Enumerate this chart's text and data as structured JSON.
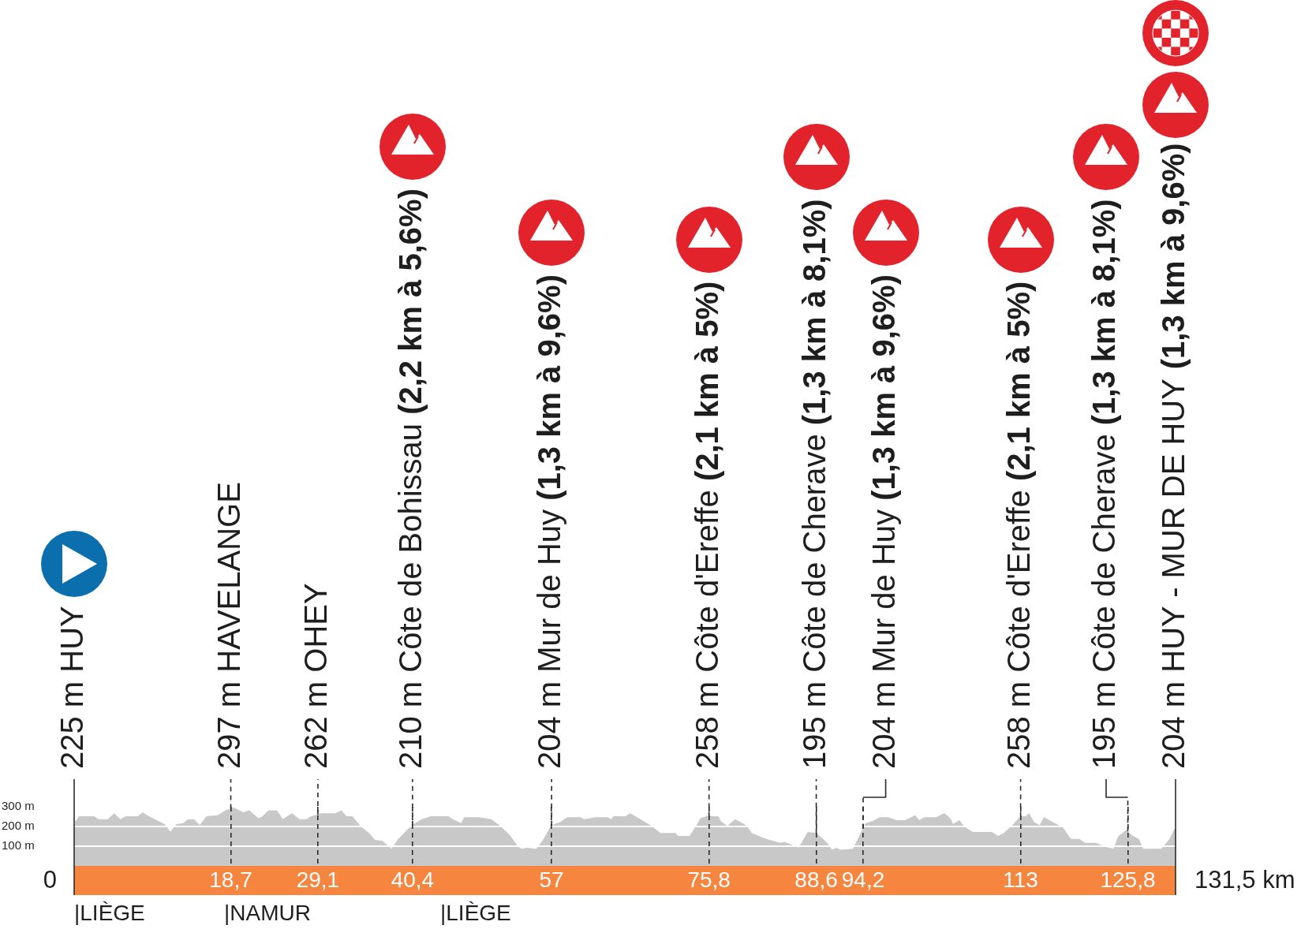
{
  "chart_data": {
    "type": "area",
    "color": "#c8c8c8",
    "x": [
      0,
      0.6,
      2.4,
      2.9,
      4.0,
      4.8,
      5.5,
      6.2,
      7.6,
      8.2,
      8.7,
      10.1,
      10.8,
      11.5,
      12.2,
      13.0,
      13.6,
      14.3,
      15.0,
      15.8,
      17.1,
      18.1,
      19.0,
      20.2,
      20.9,
      22.0,
      22.5,
      23.2,
      24.2,
      24.9,
      26.0,
      26.9,
      27.7,
      28.3,
      29.5,
      31.2,
      31.9,
      32.5,
      33.2,
      34.2,
      35.2,
      35.9,
      36.8,
      37.9,
      38.7,
      40.3,
      41.5,
      42.6,
      44.7,
      45.2,
      46.2,
      46.6,
      48.3,
      49.8,
      50.9,
      52.0,
      53.0,
      53.5,
      54.0,
      55.2,
      56.0,
      57.0,
      58.0,
      58.9,
      60.4,
      60.9,
      62.2,
      63.7,
      64.1,
      64.4,
      65.8,
      66.4,
      67.4,
      68.8,
      70.0,
      71.8,
      72.1,
      73.5,
      74.8,
      75.5,
      76.9,
      77.2,
      78.0,
      78.9,
      80.2,
      80.9,
      82.6,
      84.3,
      84.8,
      86.5,
      87.6,
      88.6,
      89.8,
      90.5,
      91.0,
      91.5,
      93.0,
      93.7,
      94.5,
      95.3,
      96.2,
      97.2,
      98.2,
      99.2,
      100.4,
      100.9,
      101.5,
      102.9,
      103.9,
      104.6,
      104.9,
      105.7,
      106.2,
      107.3,
      109.6,
      110.3,
      111.0,
      112.0,
      113.0,
      113.6,
      114.0,
      114.6,
      115.3,
      115.8,
      117.3,
      118.0,
      119.0,
      120.0,
      120.7,
      122.0,
      123.1,
      124.1,
      124.7,
      125.6,
      126.4,
      127.1,
      127.6,
      129.8,
      130.8,
      131.5
    ],
    "values": [
      215,
      250,
      250,
      235,
      235,
      265,
      235,
      250,
      250,
      270,
      255,
      225,
      210,
      170,
      210,
      215,
      235,
      235,
      205,
      250,
      255,
      280,
      295,
      270,
      280,
      240,
      250,
      280,
      280,
      235,
      265,
      235,
      235,
      250,
      265,
      265,
      280,
      250,
      250,
      200,
      165,
      130,
      125,
      85,
      135,
      205,
      235,
      250,
      250,
      235,
      215,
      245,
      245,
      235,
      200,
      155,
      95,
      85,
      90,
      85,
      130,
      205,
      220,
      245,
      245,
      235,
      245,
      245,
      235,
      250,
      250,
      265,
      240,
      205,
      165,
      165,
      150,
      150,
      240,
      250,
      250,
      225,
      200,
      235,
      205,
      165,
      135,
      115,
      120,
      90,
      170,
      165,
      120,
      80,
      90,
      80,
      85,
      145,
      215,
      225,
      245,
      245,
      230,
      230,
      255,
      230,
      245,
      245,
      265,
      240,
      210,
      230,
      200,
      170,
      170,
      150,
      165,
      205,
      250,
      250,
      265,
      220,
      205,
      245,
      210,
      195,
      135,
      135,
      115,
      115,
      95,
      85,
      150,
      180,
      150,
      135,
      85,
      85,
      135,
      195
    ],
    "xlim": [
      0,
      131.5
    ],
    "xticks": [
      {
        "value": 18.7,
        "label": "18,7"
      },
      {
        "value": 29.1,
        "label": "29,1"
      },
      {
        "value": 40.4,
        "label": "40,4"
      },
      57,
      {
        "value": 75.8,
        "label": "75,8"
      },
      {
        "value": 88.6,
        "label": "88,6"
      },
      {
        "value": 94.2,
        "label": "94,2"
      },
      113,
      {
        "value": 125.8,
        "label": "125,8"
      }
    ],
    "ylim": [
      0,
      300
    ],
    "yticks": [
      {
        "value": 100,
        "label": "100 m"
      },
      {
        "value": 200,
        "label": "200 m"
      },
      {
        "value": 300,
        "label": "300 m"
      }
    ],
    "grid": true,
    "annotations": [
      {
        "text": "225 m HUY",
        "x": 0,
        "y": 215
      },
      {
        "text": "297 m HAVELANGE",
        "x": 18.7,
        "y": 290
      },
      {
        "text": "262 m OHEY",
        "x": 29.1,
        "y": 260
      },
      {
        "text": "210 m Côte de Bohissau (2,2 km à 5,6%)",
        "x": 40.4,
        "y": 205
      },
      {
        "text": "204 m Mur de Huy (1,3 km à 9,6%)",
        "x": 57,
        "y": 205
      },
      {
        "text": "258 m Côte d'Ereffe (2,1 km à 5%)",
        "x": 75.8,
        "y": 250
      },
      {
        "text": "195 m Côte de Cherave (1,3 km à 8,1%)",
        "x": 88.6,
        "y": 165
      },
      {
        "text": "204 m Mur de Huy (1,3 km à 9,6%)",
        "x": 94.2,
        "y": 190
      },
      {
        "text": "258 m Côte d'Ereffe (2,1 km à 5%)",
        "x": 113,
        "y": 250
      },
      {
        "text": "195 m Côte de Cherave (1,3 km à 8,1%)",
        "x": 125.8,
        "y": 175
      },
      {
        "text": "204 m HUY - MUR DE HUY (1,3 km à 9,6%)",
        "x": 131.5,
        "y": 195
      },
      "0",
      "131,5 km",
      "|LIÈGE",
      "|NAMUR",
      "|LIÈGE"
    ]
  }
}
